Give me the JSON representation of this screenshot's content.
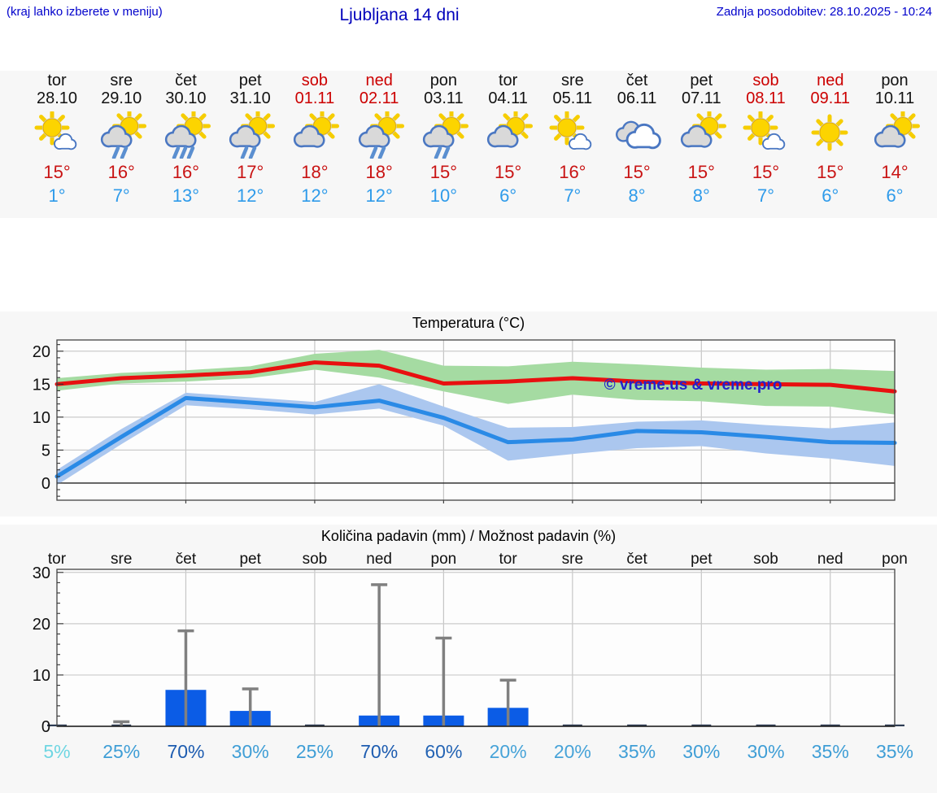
{
  "header": {
    "note": "(kraj lahko izberete v meniju)",
    "title": "Ljubljana 14 dni",
    "updated": "Zadnja posodobitev: 28.10.2025 - 10:24"
  },
  "watermark": "© vreme.us & vreme.pro",
  "days": [
    {
      "name": "tor",
      "date": "28.10",
      "weekend": false,
      "icon": "sun-small-cloud",
      "tmax": "15°",
      "tmin": "1°"
    },
    {
      "name": "sre",
      "date": "29.10",
      "weekend": false,
      "icon": "sun-cloud-rain2",
      "tmax": "16°",
      "tmin": "7°"
    },
    {
      "name": "čet",
      "date": "30.10",
      "weekend": false,
      "icon": "sun-cloud-rain3",
      "tmax": "16°",
      "tmin": "13°"
    },
    {
      "name": "pet",
      "date": "31.10",
      "weekend": false,
      "icon": "sun-cloud-rain2",
      "tmax": "17°",
      "tmin": "12°"
    },
    {
      "name": "sob",
      "date": "01.11",
      "weekend": true,
      "icon": "sun-cloud",
      "tmax": "18°",
      "tmin": "12°"
    },
    {
      "name": "ned",
      "date": "02.11",
      "weekend": true,
      "icon": "sun-cloud-rain2",
      "tmax": "18°",
      "tmin": "12°"
    },
    {
      "name": "pon",
      "date": "03.11",
      "weekend": false,
      "icon": "sun-cloud-rain2",
      "tmax": "15°",
      "tmin": "10°"
    },
    {
      "name": "tor",
      "date": "04.11",
      "weekend": false,
      "icon": "sun-cloud",
      "tmax": "15°",
      "tmin": "6°"
    },
    {
      "name": "sre",
      "date": "05.11",
      "weekend": false,
      "icon": "sun-small-cloud",
      "tmax": "16°",
      "tmin": "7°"
    },
    {
      "name": "čet",
      "date": "06.11",
      "weekend": false,
      "icon": "cloudy",
      "tmax": "15°",
      "tmin": "8°"
    },
    {
      "name": "pet",
      "date": "07.11",
      "weekend": false,
      "icon": "sun-cloud",
      "tmax": "15°",
      "tmin": "8°"
    },
    {
      "name": "sob",
      "date": "08.11",
      "weekend": true,
      "icon": "sun-small-cloud",
      "tmax": "15°",
      "tmin": "7°"
    },
    {
      "name": "ned",
      "date": "09.11",
      "weekend": true,
      "icon": "sun",
      "tmax": "15°",
      "tmin": "6°"
    },
    {
      "name": "pon",
      "date": "10.11",
      "weekend": false,
      "icon": "sun-cloud",
      "tmax": "14°",
      "tmin": "6°"
    }
  ],
  "chart_data": [
    {
      "type": "line",
      "title": "Temperatura (°C)",
      "categories": [
        "tor",
        "sre",
        "čet",
        "pet",
        "sob",
        "ned",
        "pon",
        "tor",
        "sre",
        "čet",
        "pet",
        "sob",
        "ned",
        "pon"
      ],
      "ylim": [
        -2.6,
        21.7
      ],
      "yticks": [
        0,
        5,
        10,
        15,
        20
      ],
      "grid_day_indexes": [
        2,
        4,
        6,
        8,
        10,
        12
      ],
      "series": [
        {
          "name": "max temperature",
          "color": "#e81010",
          "band_color": "#a5dba2",
          "values": [
            15.0,
            15.9,
            16.3,
            16.8,
            18.3,
            17.8,
            15.1,
            15.4,
            15.9,
            15.4,
            15.1,
            15.0,
            14.9,
            13.9
          ],
          "band_hi": [
            15.9,
            16.7,
            17.1,
            17.7,
            19.6,
            20.2,
            17.8,
            17.7,
            18.4,
            18.0,
            17.5,
            17.2,
            17.3,
            17.0
          ],
          "band_lo": [
            14.0,
            15.1,
            15.4,
            15.9,
            17.2,
            16.0,
            13.9,
            12.0,
            13.4,
            12.6,
            12.4,
            11.7,
            11.6,
            10.4
          ]
        },
        {
          "name": "min temperature",
          "color": "#2a8ae6",
          "band_color": "#abc7ef",
          "values": [
            1.0,
            7.0,
            12.9,
            12.2,
            11.5,
            12.5,
            9.9,
            6.2,
            6.6,
            7.9,
            7.7,
            7.0,
            6.2,
            6.1
          ],
          "band_hi": [
            2.0,
            8.2,
            13.7,
            13.0,
            12.3,
            15.0,
            11.6,
            8.4,
            8.5,
            9.3,
            9.5,
            8.8,
            8.3,
            9.2
          ],
          "band_lo": [
            -0.3,
            5.9,
            11.8,
            11.2,
            10.4,
            11.3,
            8.7,
            3.4,
            4.4,
            5.3,
            5.6,
            4.5,
            3.7,
            2.6
          ]
        }
      ]
    },
    {
      "type": "bar",
      "title": "Količina padavin (mm) / Možnost padavin (%)",
      "categories": [
        "tor",
        "sre",
        "čet",
        "pet",
        "sob",
        "ned",
        "pon",
        "tor",
        "sre",
        "čet",
        "pet",
        "sob",
        "ned",
        "pon"
      ],
      "values": [
        0.1,
        0.25,
        7.1,
        3.0,
        0.1,
        2.1,
        2.1,
        3.6,
        0.1,
        0.1,
        0.1,
        0.1,
        0.1,
        0.1
      ],
      "whisker_max": [
        0,
        0.9,
        18.6,
        7.3,
        0,
        27.6,
        17.2,
        9.0,
        0,
        0,
        0,
        0,
        0,
        0
      ],
      "probability_percent": [
        5,
        25,
        70,
        30,
        25,
        70,
        60,
        20,
        20,
        35,
        30,
        30,
        35,
        35
      ],
      "probability_labels": [
        "5%",
        "25%",
        "70%",
        "30%",
        "25%",
        "70%",
        "60%",
        "20%",
        "20%",
        "35%",
        "30%",
        "30%",
        "35%",
        "35%"
      ],
      "probability_colors": [
        "#6fd6e2",
        "#3f9ed6",
        "#1d5cb0",
        "#3f9ed6",
        "#3f9ed6",
        "#1d5cb0",
        "#2464b4",
        "#47a3d8",
        "#47a3d8",
        "#3f9ed6",
        "#3f9ed6",
        "#3f9ed6",
        "#3f9ed6",
        "#3f9ed6"
      ],
      "ylim": [
        0,
        30.6
      ],
      "yticks": [
        0,
        10,
        20,
        30
      ],
      "grid_day_indexes": [
        2,
        4,
        6,
        8,
        10,
        12
      ],
      "bar_color": "#0b5ce6",
      "whisker_color": "#808080"
    }
  ],
  "colors": {
    "header_blue": "#0202cc",
    "tmax_red": "#c91414",
    "tmin_blue": "#2f9bea",
    "weekend_red": "#cc0000",
    "watermark_blue": "#2222cc",
    "figure_bg": "#f7f7f7",
    "plot_bg": "#fdfdfd",
    "grid_gray": "#cccccc",
    "border_dark": "#444444"
  }
}
